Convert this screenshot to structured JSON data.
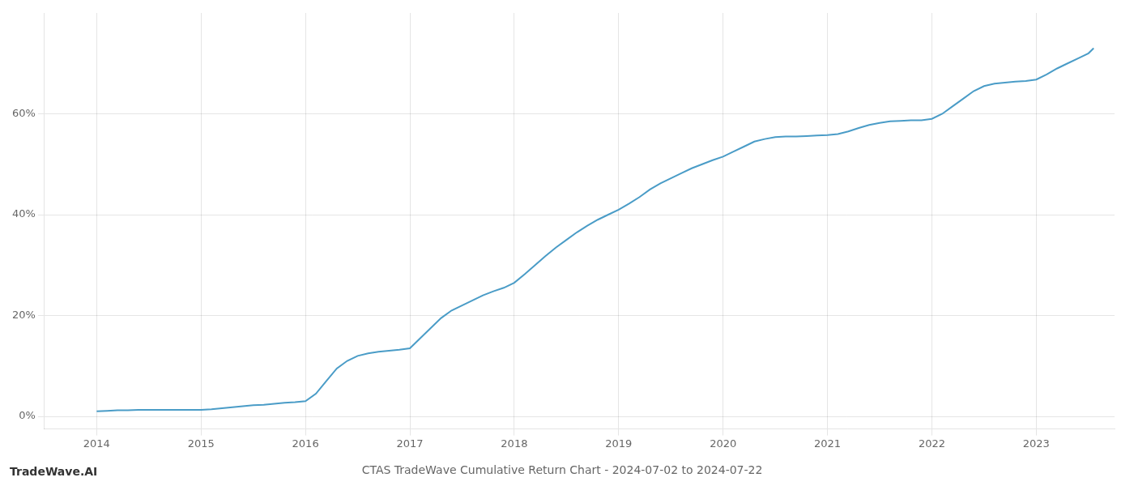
{
  "chart_data": {
    "type": "line",
    "title": "CTAS TradeWave Cumulative Return Chart - 2024-07-02 to 2024-07-22",
    "annotations": [
      "TradeWave.AI"
    ],
    "color": "#4a9cc7",
    "grid": true,
    "x": [
      2014.0,
      2014.1,
      2014.2,
      2014.3,
      2014.4,
      2014.5,
      2014.6,
      2014.7,
      2014.8,
      2014.9,
      2015.0,
      2015.1,
      2015.2,
      2015.3,
      2015.4,
      2015.5,
      2015.6,
      2015.7,
      2015.8,
      2015.9,
      2016.0,
      2016.1,
      2016.2,
      2016.3,
      2016.4,
      2016.5,
      2016.6,
      2016.7,
      2016.8,
      2016.9,
      2017.0,
      2017.1,
      2017.2,
      2017.3,
      2017.4,
      2017.5,
      2017.6,
      2017.7,
      2017.8,
      2017.9,
      2018.0,
      2018.1,
      2018.2,
      2018.3,
      2018.4,
      2018.5,
      2018.6,
      2018.7,
      2018.8,
      2018.9,
      2019.0,
      2019.1,
      2019.2,
      2019.3,
      2019.4,
      2019.5,
      2019.6,
      2019.7,
      2019.8,
      2019.9,
      2020.0,
      2020.1,
      2020.2,
      2020.3,
      2020.4,
      2020.5,
      2020.6,
      2020.7,
      2020.8,
      2020.9,
      2021.0,
      2021.1,
      2021.2,
      2021.3,
      2021.4,
      2021.5,
      2021.6,
      2021.7,
      2021.8,
      2021.9,
      2022.0,
      2022.1,
      2022.2,
      2022.3,
      2022.4,
      2022.5,
      2022.6,
      2022.7,
      2022.8,
      2022.9,
      2023.0,
      2023.1,
      2023.2,
      2023.3,
      2023.4,
      2023.5,
      2023.55
    ],
    "values": [
      0.01,
      0.011,
      0.012,
      0.012,
      0.013,
      0.013,
      0.013,
      0.013,
      0.013,
      0.013,
      0.013,
      0.014,
      0.016,
      0.018,
      0.02,
      0.022,
      0.023,
      0.025,
      0.027,
      0.028,
      0.03,
      0.045,
      0.07,
      0.095,
      0.11,
      0.12,
      0.125,
      0.128,
      0.13,
      0.132,
      0.135,
      0.155,
      0.175,
      0.195,
      0.21,
      0.22,
      0.23,
      0.24,
      0.248,
      0.255,
      0.265,
      0.282,
      0.3,
      0.318,
      0.335,
      0.35,
      0.365,
      0.378,
      0.39,
      0.4,
      0.41,
      0.422,
      0.435,
      0.45,
      0.462,
      0.472,
      0.482,
      0.492,
      0.5,
      0.508,
      0.515,
      0.525,
      0.535,
      0.545,
      0.55,
      0.554,
      0.555,
      0.555,
      0.556,
      0.557,
      0.558,
      0.56,
      0.565,
      0.572,
      0.578,
      0.582,
      0.585,
      0.586,
      0.587,
      0.587,
      0.59,
      0.6,
      0.615,
      0.63,
      0.645,
      0.655,
      0.66,
      0.662,
      0.664,
      0.665,
      0.668,
      0.678,
      0.69,
      0.7,
      0.71,
      0.72,
      0.73
    ],
    "xlim": [
      2013.5,
      2023.75
    ],
    "xticks": [
      2014,
      2015,
      2016,
      2017,
      2018,
      2019,
      2020,
      2021,
      2022,
      2023
    ],
    "ylim": [
      -0.025,
      0.8
    ],
    "yticks": [
      {
        "value": 0.0,
        "label": "0%"
      },
      {
        "value": 0.2,
        "label": "20%"
      },
      {
        "value": 0.4,
        "label": "40%"
      },
      {
        "value": 0.6,
        "label": "60%"
      }
    ]
  }
}
